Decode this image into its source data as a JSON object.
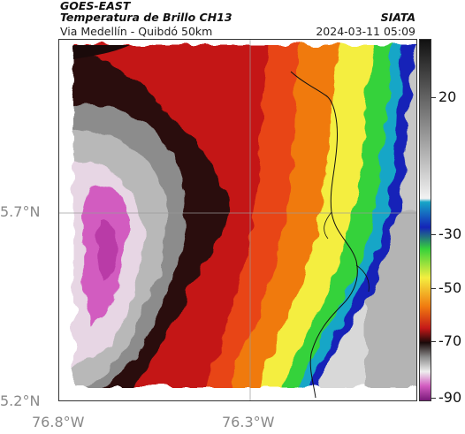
{
  "header": {
    "satellite": "GOES-EAST",
    "product": "Temperatura de Brillo CH13",
    "region": "Via Medellín - Quibdó 50km",
    "agency": "SIATA",
    "timestamp": "2024-03-11 05:09"
  },
  "axes": {
    "y_ticks": [
      "5.7°N",
      "5.2°N"
    ],
    "x_ticks": [
      "76.8°W",
      "76.3°W"
    ]
  },
  "colorbar": {
    "ticks": [
      "20",
      "-30",
      "-50",
      "-70",
      "-90"
    ],
    "values": [
      20,
      -30,
      -50,
      -70,
      -90
    ],
    "range": [
      -95,
      40
    ]
  },
  "colors": {
    "cold_pink": "#d25bc0",
    "gray": "#a8a8a8",
    "black": "#1a0a0a",
    "red": "#c41818",
    "orange": "#f07a10",
    "yellow": "#f4ee40",
    "green": "#36d23a",
    "blue": "#1424b8",
    "warm_gray": "#c6c6c6"
  }
}
